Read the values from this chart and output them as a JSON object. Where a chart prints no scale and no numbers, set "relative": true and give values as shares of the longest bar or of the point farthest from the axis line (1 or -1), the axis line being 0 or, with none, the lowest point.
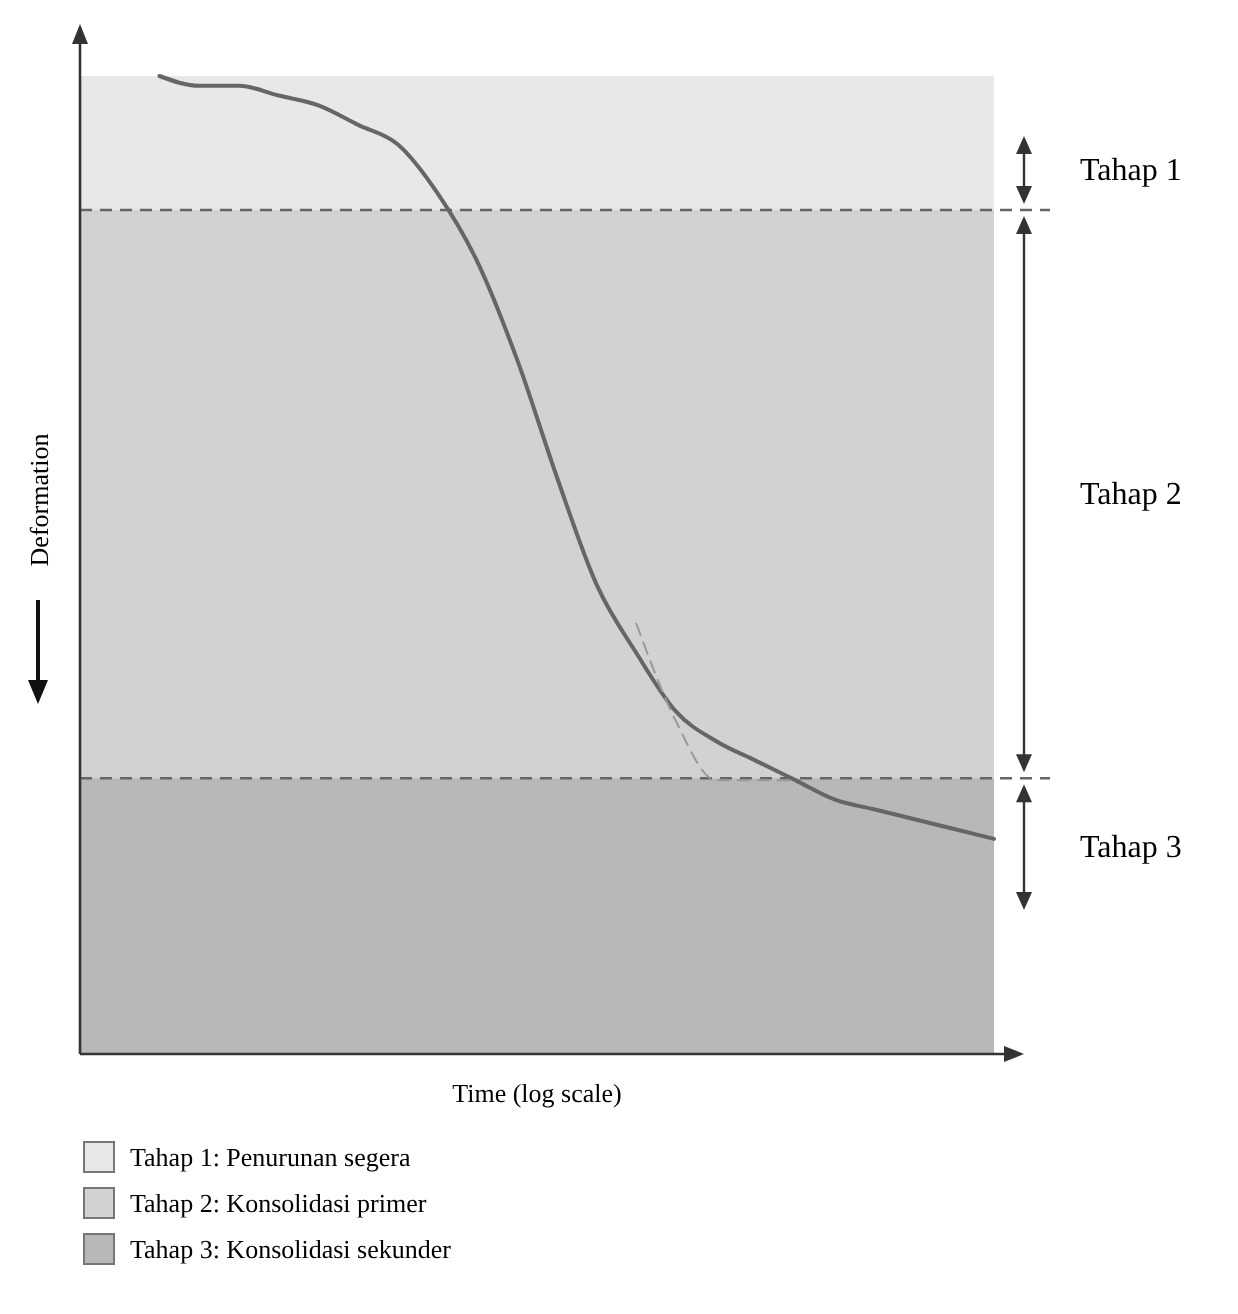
{
  "chart_data": {
    "type": "line",
    "relative": true,
    "xlabel": "Time (log scale)",
    "ylabel": "Deformation",
    "categories": [
      null,
      null,
      null,
      null,
      null,
      null,
      null,
      null,
      null,
      null,
      null,
      null,
      null,
      null,
      null,
      null,
      null,
      null,
      null,
      null,
      null,
      null,
      null,
      null
    ],
    "series": [
      {
        "color": "#666666",
        "line_style": "solid",
        "values": [
          null,
          null,
          1.0,
          0.99,
          0.99,
          0.98,
          0.97,
          0.95,
          0.93,
          0.88,
          0.81,
          0.71,
          0.59,
          0.48,
          0.41,
          0.35,
          0.32,
          0.3,
          0.28,
          0.26,
          0.25,
          0.24,
          0.23,
          0.22
        ]
      },
      {
        "color": "#999999",
        "line_style": "dashed",
        "values": [
          null,
          null,
          null,
          null,
          null,
          null,
          null,
          null,
          null,
          null,
          null,
          null,
          null,
          null,
          0.44,
          0.34,
          0.28,
          0.28,
          0.28,
          null,
          null,
          null,
          null,
          null
        ]
      }
    ],
    "bands": [
      {
        "axis": "y",
        "from": 0.863,
        "to": 1.0,
        "label": "Tahap 1",
        "color": "#e8e8e8"
      },
      {
        "axis": "y",
        "from": 0.282,
        "to": 0.863,
        "label": "Tahap 2",
        "color": "#d2d2d2"
      },
      {
        "axis": "y",
        "from": 0,
        "to": 0.282,
        "label": "Tahap 3",
        "color": "#b8b8b8"
      }
    ],
    "ref_lines": [
      {
        "axis": "y",
        "value": 0.863,
        "color": "#666666",
        "line_style": "dashed"
      },
      {
        "axis": "y",
        "value": 0.282,
        "color": "#666666",
        "line_style": "dashed"
      }
    ],
    "annotations": [
      "Tahap 1: Penurunan segera",
      "Tahap 2: Konsolidasi primer",
      "Tahap 3: Konsolidasi sekunder"
    ]
  }
}
